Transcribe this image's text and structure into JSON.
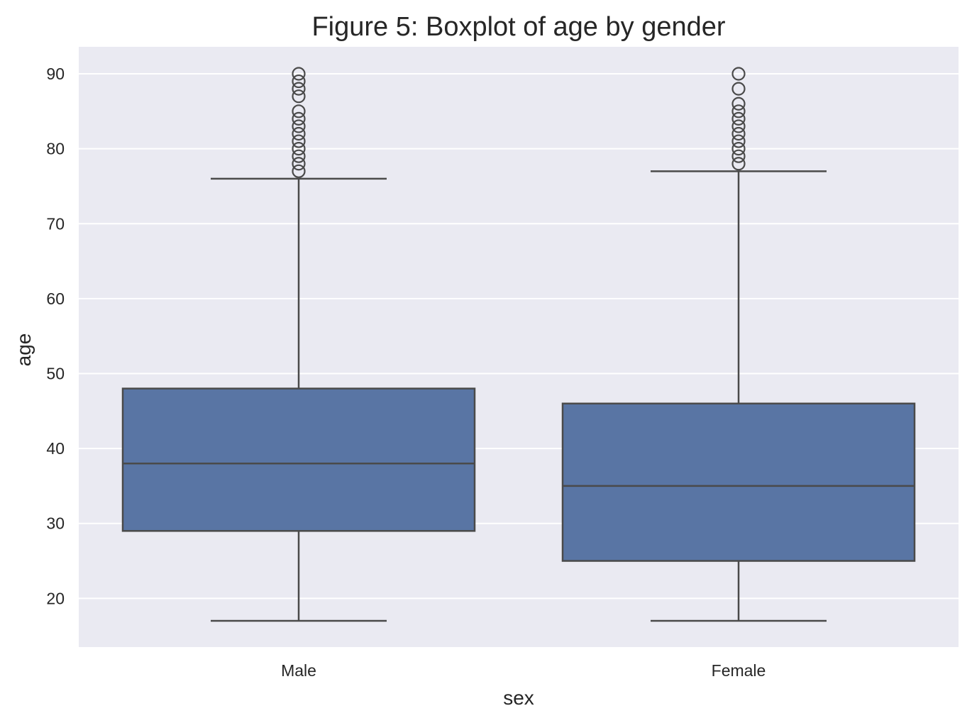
{
  "chart_data": {
    "type": "box",
    "title": "Figure 5: Boxplot of age by gender",
    "xlabel": "sex",
    "ylabel": "age",
    "ylim": [
      13.5,
      93.6
    ],
    "yticks": [
      20,
      30,
      40,
      50,
      60,
      70,
      80,
      90
    ],
    "grid": true,
    "categories": [
      "Male",
      "Female"
    ],
    "boxes": [
      {
        "category": "Male",
        "whisker_low": 17,
        "q1": 29,
        "median": 38,
        "q3": 48,
        "whisker_high": 76,
        "outliers": [
          77,
          78,
          79,
          80,
          81,
          82,
          83,
          84,
          85,
          87,
          88,
          89,
          90
        ]
      },
      {
        "category": "Female",
        "whisker_low": 17,
        "q1": 25,
        "median": 35,
        "q3": 46,
        "whisker_high": 77,
        "outliers": [
          78,
          79,
          80,
          81,
          82,
          83,
          84,
          85,
          86,
          88,
          90
        ]
      }
    ],
    "colors": {
      "box_fill": "#5975a4",
      "line": "#4a4a4a",
      "plot_background": "#eaeaf2",
      "grid": "#ffffff",
      "text": "#262626"
    }
  }
}
